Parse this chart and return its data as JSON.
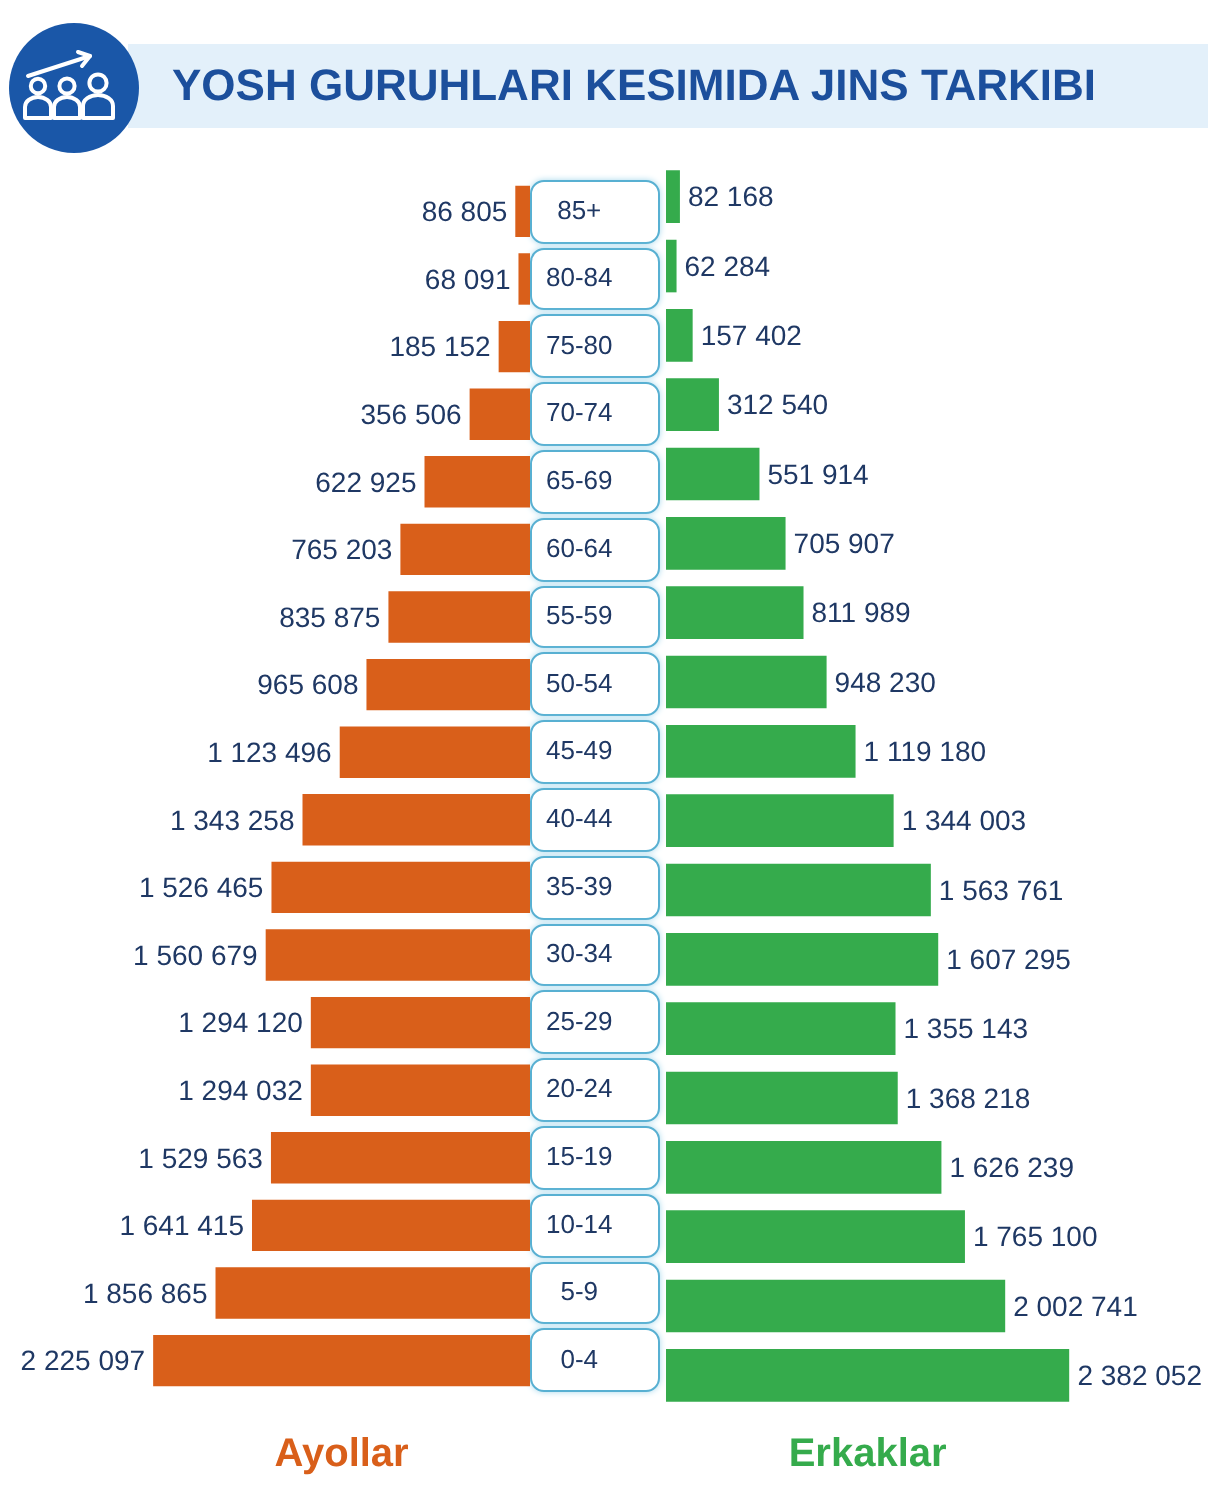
{
  "chart_data": [
    {
      "type": "bar",
      "orientation": "horizontal",
      "title": "YOSH GURUHLARI KESIMIDA JINS TARKIBI",
      "categories": [
        "85+",
        "80-84",
        "75-80",
        "70-74",
        "65-69",
        "60-64",
        "55-59",
        "50-54",
        "45-49",
        "40-44",
        "35-39",
        "30-34",
        "25-29",
        "20-24",
        "15-19",
        "10-14",
        "5-9",
        "0-4"
      ],
      "series": [
        {
          "name": "Ayollar",
          "color": "#d95f1a",
          "values": [
            86805,
            68091,
            185152,
            356506,
            622925,
            765203,
            835875,
            965608,
            1123496,
            1343258,
            1526465,
            1560679,
            1294120,
            1294032,
            1529563,
            1641415,
            1856865,
            2225097
          ],
          "value_labels": [
            "86 805",
            "68 091",
            "185 152",
            "356 506",
            "622 925",
            "765 203",
            "835 875",
            "965 608",
            "1 123 496",
            "1 343 258",
            "1 526 465",
            "1 560 679",
            "1 294 120",
            "1 294 032",
            "1 529 563",
            "1 641 415",
            "1 856 865",
            "2 225 097"
          ]
        }
      ],
      "tick_labels": "y",
      "legend": "bottom"
    },
    {
      "type": "bar",
      "orientation": "horizontal",
      "categories": [
        null,
        null,
        null,
        null,
        null,
        null,
        null,
        null,
        null,
        null,
        null,
        null,
        null,
        null,
        null,
        null,
        null,
        null
      ],
      "series": [
        {
          "name": "Erkaklar",
          "color": "#35ab4c",
          "values": [
            82168,
            62284,
            157402,
            312540,
            551914,
            705907,
            811989,
            948230,
            1119180,
            1344003,
            1563761,
            1607295,
            1355143,
            1368218,
            1626239,
            1765100,
            2002741,
            2382052
          ],
          "value_labels": [
            "82 168",
            "62 284",
            "157 402",
            "312 540",
            "551 914",
            "705 907",
            "811 989",
            "948 230",
            "1 119 180",
            "1 344 003",
            "1 563 761",
            "1 607 295",
            "1 355 143",
            "1 368 218",
            "1 626 239",
            "1 765 100",
            "2 002 741",
            "2 382 052"
          ]
        }
      ],
      "tick_labels": false,
      "legend": "bottom"
    }
  ]
}
